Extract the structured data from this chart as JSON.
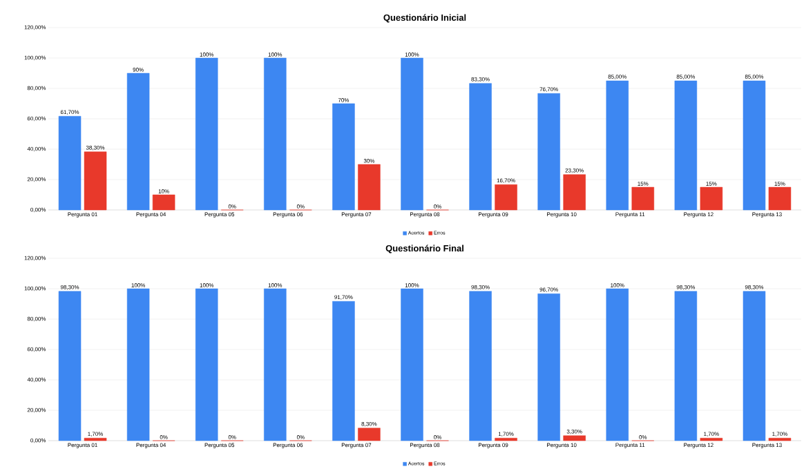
{
  "chart_data": [
    {
      "type": "bar",
      "title": "Questionário Inicial",
      "categories": [
        "Pergunta 01",
        "Pergunta 04",
        "Pergunta 05",
        "Pergunta 06",
        "Pergunta 07",
        "Pergunta 08",
        "Pergunta 09",
        "Pergunta 10",
        "Pergunta 11",
        "Pergunta 12",
        "Pergunta 13"
      ],
      "series": [
        {
          "name": "Acertos",
          "color": "#3d87f2",
          "values": [
            61.7,
            90,
            100,
            100,
            70,
            100,
            83.3,
            76.7,
            85,
            85,
            85
          ],
          "value_labels": [
            "61,70%",
            "90%",
            "100%",
            "100%",
            "70%",
            "100%",
            "83,30%",
            "76,70%",
            "85,00%",
            "85,00%",
            "85,00%"
          ]
        },
        {
          "name": "Erros",
          "color": "#e8392b",
          "values": [
            38.3,
            10,
            0,
            0,
            30,
            0,
            16.7,
            23.3,
            15,
            15,
            15
          ],
          "value_labels": [
            "38,30%",
            "10%",
            "0%",
            "0%",
            "30%",
            "0%",
            "16,70%",
            "23,30%",
            "15%",
            "15%",
            "15%"
          ]
        }
      ],
      "ylim": [
        0,
        120
      ],
      "yticks": [
        {
          "value": 0,
          "label": "0,00%"
        },
        {
          "value": 20,
          "label": "20,00%"
        },
        {
          "value": 40,
          "label": "40,00%"
        },
        {
          "value": 60,
          "label": "60,00%"
        },
        {
          "value": 80,
          "label": "80,00%"
        },
        {
          "value": 100,
          "label": "100,00%"
        },
        {
          "value": 120,
          "label": "120,00%"
        }
      ],
      "grid": "y",
      "legend": "bottom"
    },
    {
      "type": "bar",
      "title": "Questionário Final",
      "categories": [
        "Pergunta 01",
        "Pergunta 04",
        "Pergunta 05",
        "Pergunta 06",
        "Pergunta 07",
        "Pergunta 08",
        "Pergunta 09",
        "Pergunta 10",
        "Pergunta 11",
        "Pergunta 12",
        "Pergunta 13"
      ],
      "series": [
        {
          "name": "Acertos",
          "color": "#3d87f2",
          "values": [
            98.3,
            100,
            100,
            100,
            91.7,
            100,
            98.3,
            96.7,
            100,
            98.3,
            98.3
          ],
          "value_labels": [
            "98,30%",
            "100%",
            "100%",
            "100%",
            "91,70%",
            "100%",
            "98,30%",
            "96,70%",
            "100%",
            "98,30%",
            "98,30%"
          ]
        },
        {
          "name": "Erros",
          "color": "#e8392b",
          "values": [
            1.7,
            0,
            0,
            0,
            8.3,
            0,
            1.7,
            3.3,
            0,
            1.7,
            1.7
          ],
          "value_labels": [
            "1,70%",
            "0%",
            "0%",
            "0%",
            "8,30%",
            "0%",
            "1,70%",
            "3,30%",
            "0%",
            "1,70%",
            "1,70%"
          ]
        }
      ],
      "ylim": [
        0,
        120
      ],
      "yticks": [
        {
          "value": 0,
          "label": "0,00%"
        },
        {
          "value": 20,
          "label": "20,00%"
        },
        {
          "value": 40,
          "label": "40,00%"
        },
        {
          "value": 60,
          "label": "60,00%"
        },
        {
          "value": 80,
          "label": "80,00%"
        },
        {
          "value": 100,
          "label": "100,00%"
        },
        {
          "value": 120,
          "label": "120,00%"
        }
      ],
      "grid": "y",
      "legend": "bottom"
    }
  ]
}
